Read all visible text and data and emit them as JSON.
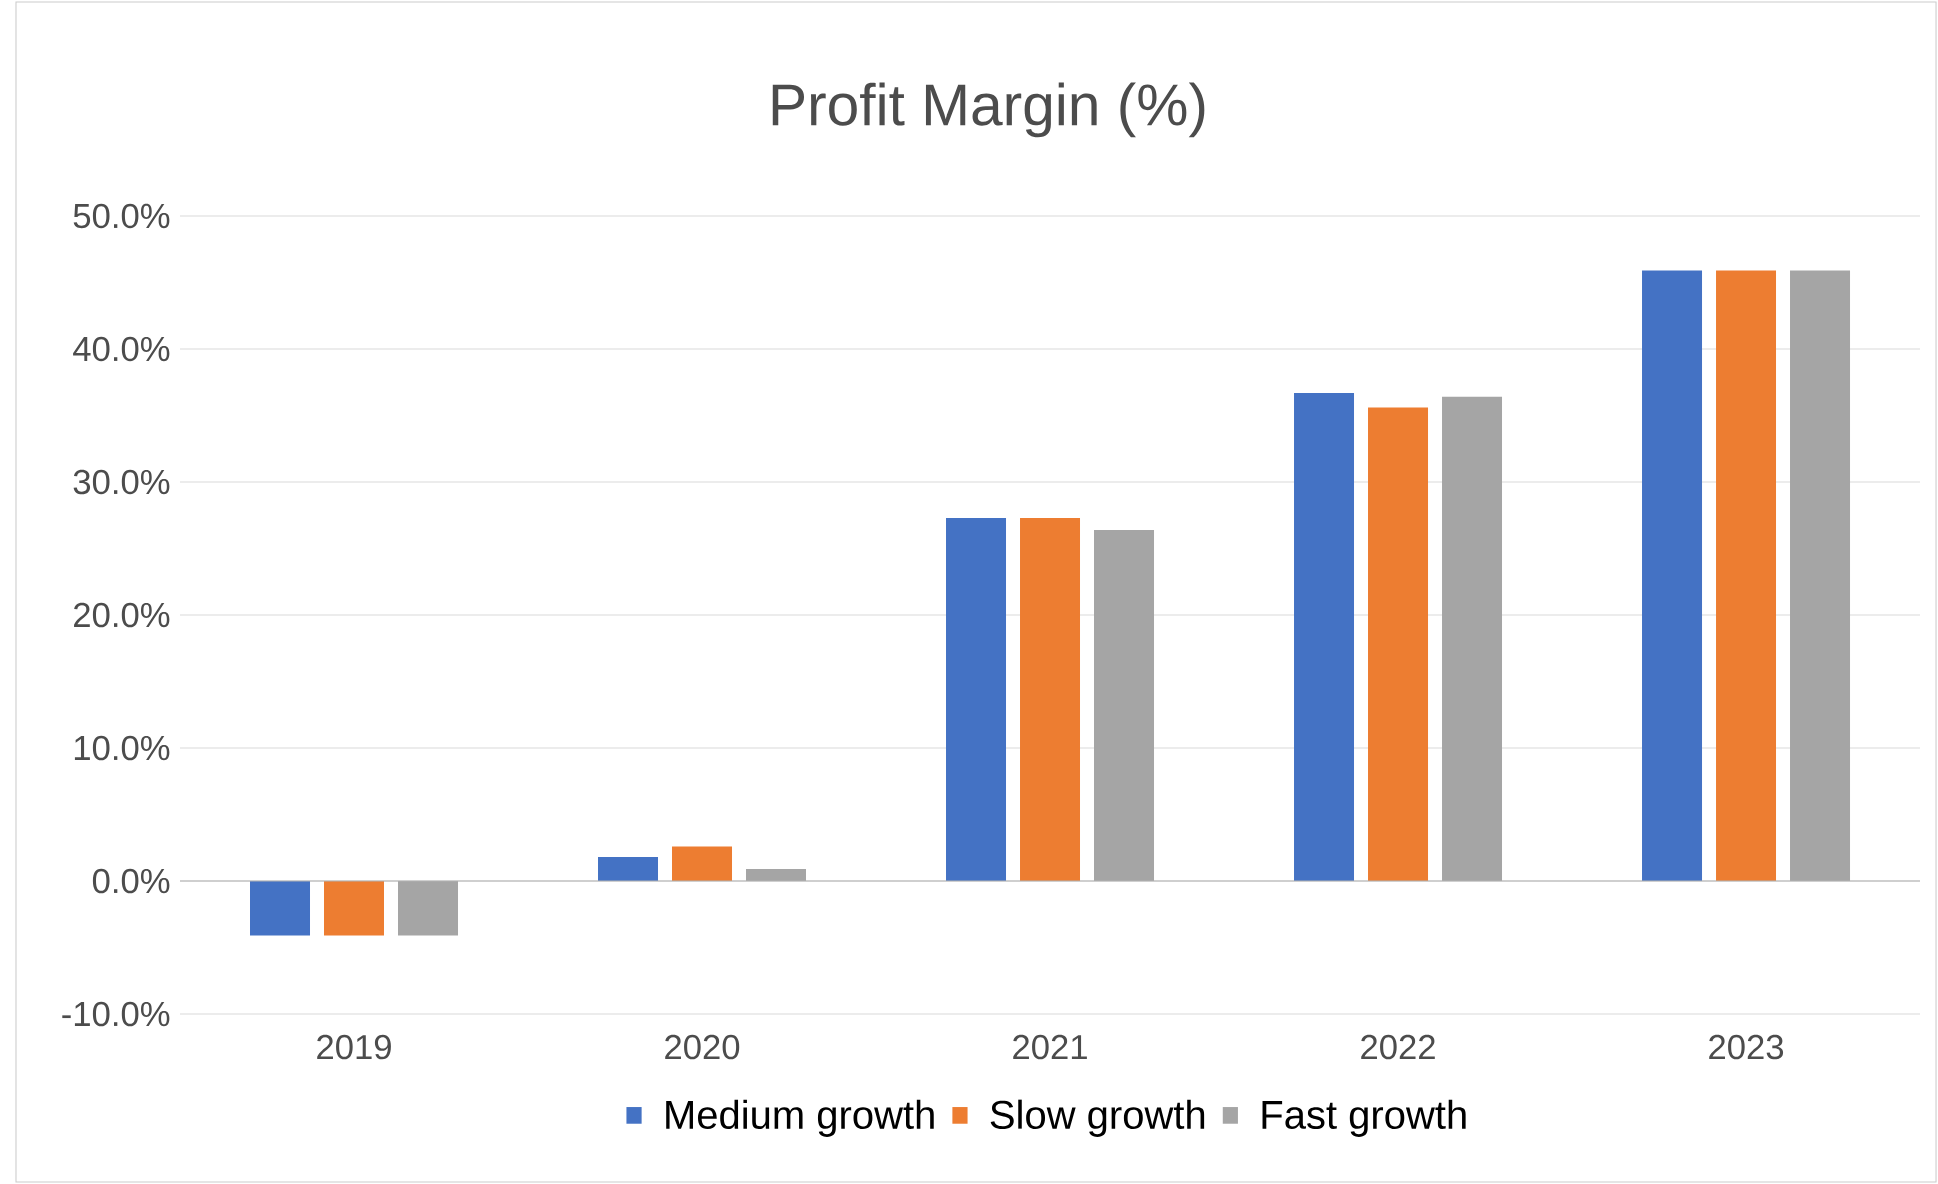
{
  "chart_data": {
    "type": "bar",
    "title": "Profit Margin (%)",
    "categories": [
      "2019",
      "2020",
      "2021",
      "2022",
      "2023"
    ],
    "series": [
      {
        "name": "Medium growth",
        "color": "#4472c4",
        "values": [
          -4.1,
          1.8,
          27.3,
          36.7,
          45.9
        ]
      },
      {
        "name": "Slow growth",
        "color": "#ed7d31",
        "values": [
          -4.1,
          2.6,
          27.3,
          35.6,
          45.9
        ]
      },
      {
        "name": "Fast growth",
        "color": "#a5a5a5",
        "values": [
          -4.1,
          0.9,
          26.4,
          36.4,
          45.9
        ]
      }
    ],
    "ylim": [
      -10,
      50
    ],
    "yticks": [
      {
        "value": -10,
        "label": "-10.0%"
      },
      {
        "value": 0,
        "label": "0.0%"
      },
      {
        "value": 10,
        "label": "10.0%"
      },
      {
        "value": 20,
        "label": "20.0%"
      },
      {
        "value": 30,
        "label": "30.0%"
      },
      {
        "value": 40,
        "label": "40.0%"
      },
      {
        "value": 50,
        "label": "50.0%"
      }
    ],
    "grid": "y",
    "legend": "bottom"
  }
}
